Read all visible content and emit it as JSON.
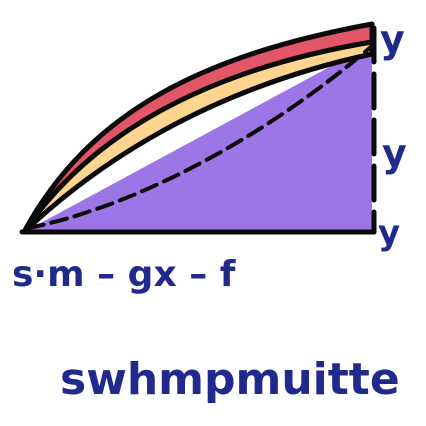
{
  "labels": {
    "y_top": "y",
    "y_mid": "y",
    "y_bottom": "y",
    "formula": "s·m – gx – f",
    "word": "swhmpmuitte"
  },
  "colors": {
    "outline": "#0b0b0b",
    "red_band": "#e35569",
    "yellow_band": "#ffd48f",
    "purple_fill": "#9c75e6",
    "ink": "#202a8c"
  }
}
